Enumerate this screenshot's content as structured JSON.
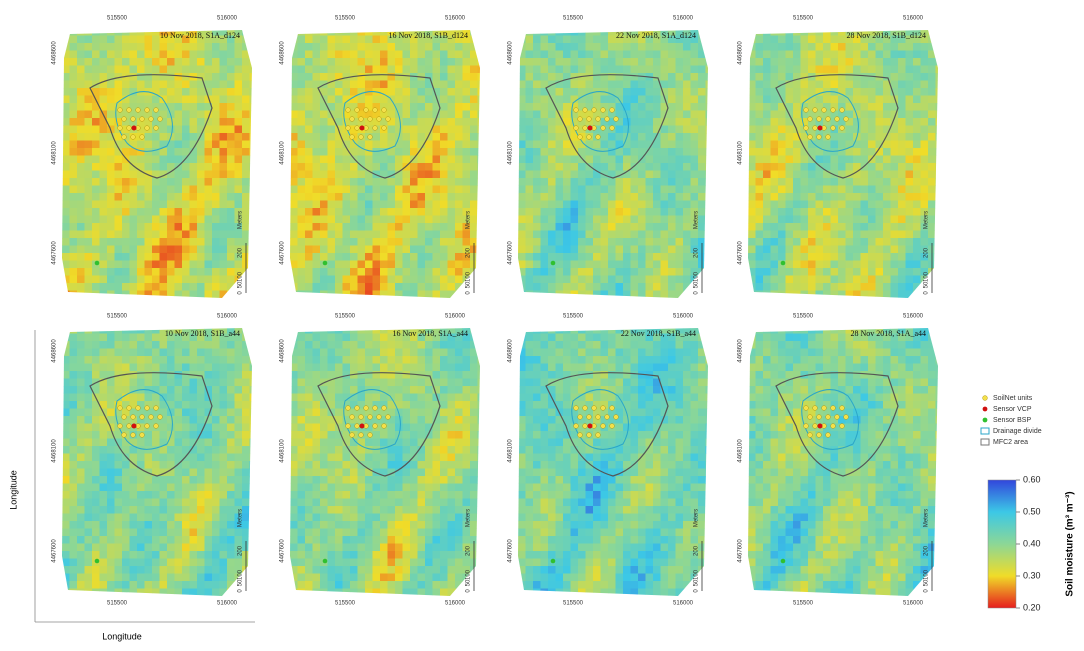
{
  "panels": [
    {
      "title": "10 Nov 2018, S1A_d124"
    },
    {
      "title": "16 Nov 2018, S1B_d124"
    },
    {
      "title": "22 Nov 2018, S1A_d124"
    },
    {
      "title": "28 Nov 2018, S1B_d124"
    },
    {
      "title": "10 Nov 2018, S1B_a44"
    },
    {
      "title": "16 Nov 2018, S1A_a44"
    },
    {
      "title": "22 Nov 2018, S1B_a44"
    },
    {
      "title": "28 Nov 2018, S1A_a44"
    }
  ],
  "x_ticks": [
    "515500",
    "516000"
  ],
  "y_ticks": [
    "4468600",
    "4468100",
    "4467600"
  ],
  "scale_bar": {
    "numbers": [
      "0",
      "50",
      "100",
      "200"
    ],
    "unit": "Meters"
  },
  "legend": [
    "SoilNet units",
    "Sensor VCP",
    "Sensor BSP",
    "Drainage divide",
    "MFC2 area"
  ],
  "colorbar": {
    "label": "Soil moisture (m³ m⁻³)",
    "ticks": [
      {
        "value": 0.6,
        "label": "0.60"
      },
      {
        "value": 0.5,
        "label": "0.50"
      },
      {
        "value": 0.4,
        "label": "0.40"
      },
      {
        "value": 0.3,
        "label": "0.30"
      },
      {
        "value": 0.2,
        "label": "0.20"
      }
    ]
  },
  "axis_labels": {
    "y": "Longitude",
    "x": "Longitude"
  }
}
